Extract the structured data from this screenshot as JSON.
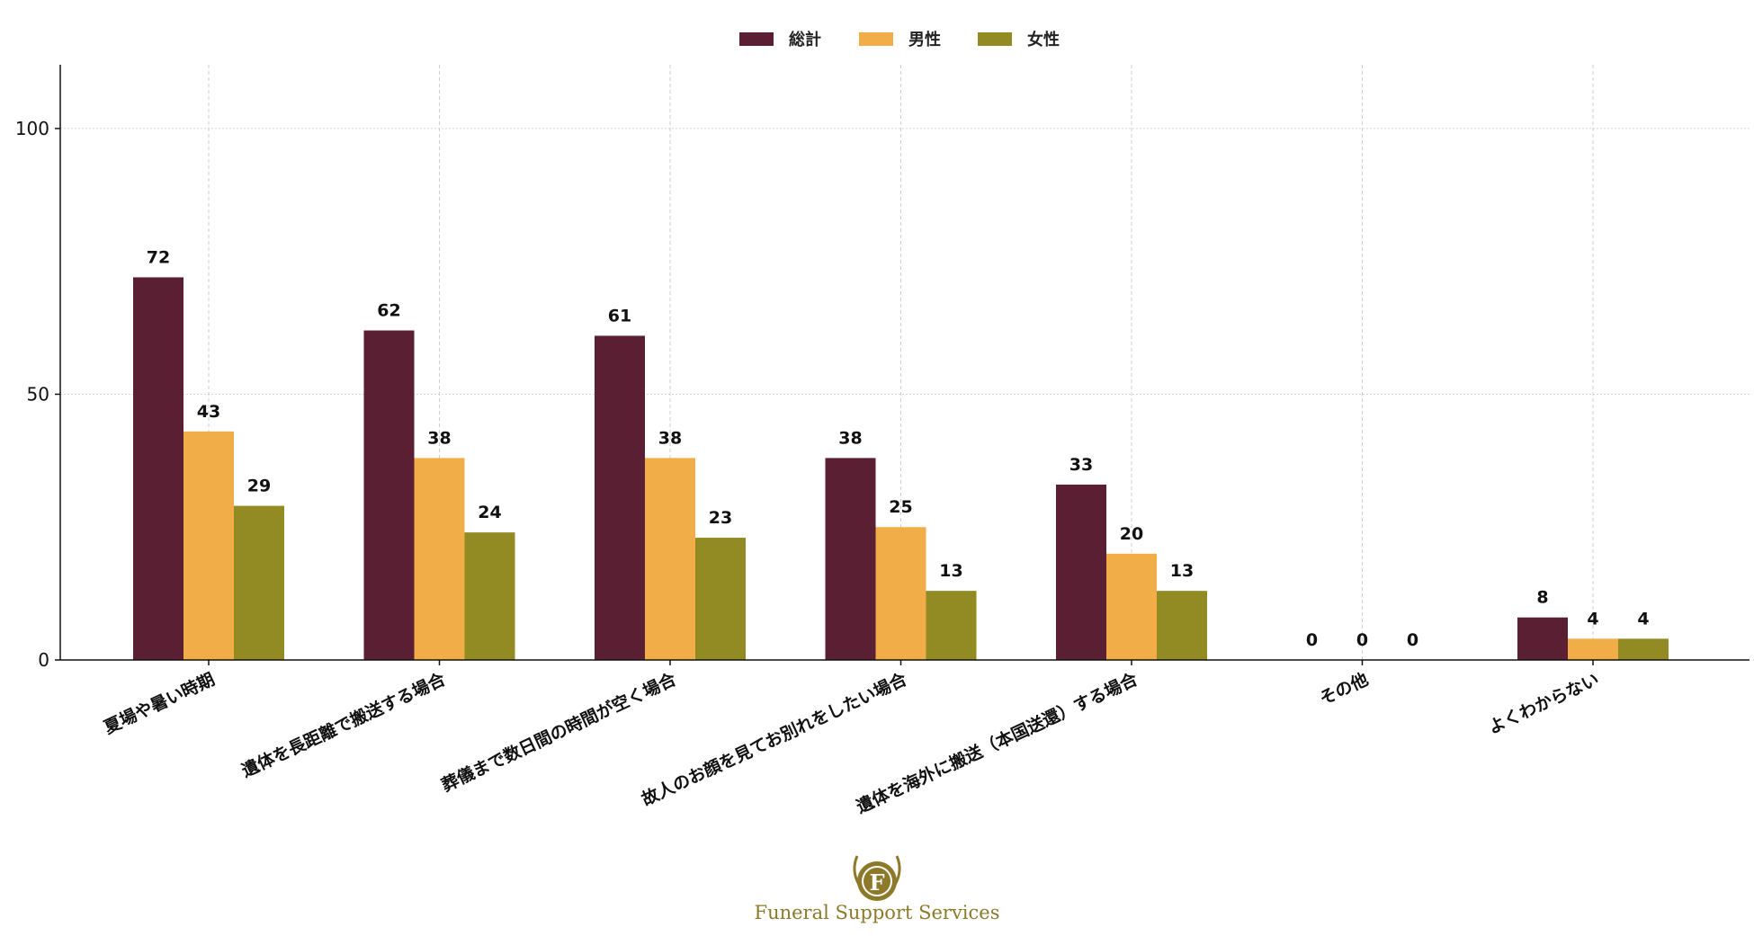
{
  "chart_data": {
    "type": "bar",
    "categories": [
      "夏場や暑い時期",
      "遺体を長距離で搬送する場合",
      "葬儀まで数日間の時間が空く場合",
      "故人のお顔を見てお別れをしたい場合",
      "遺体を海外に搬送（本国送還）する場合",
      "その他",
      "よくわからない"
    ],
    "series": [
      {
        "name": "総計",
        "color": "#5a1f33",
        "values": [
          72,
          62,
          61,
          38,
          33,
          0,
          8
        ]
      },
      {
        "name": "男性",
        "color": "#f0ad48",
        "values": [
          43,
          38,
          38,
          25,
          20,
          0,
          4
        ]
      },
      {
        "name": "女性",
        "color": "#928a22",
        "values": [
          29,
          24,
          23,
          13,
          13,
          0,
          4
        ]
      }
    ],
    "title": "",
    "xlabel": "",
    "ylabel": "",
    "ylim": [
      0,
      112
    ],
    "yticks": [
      0,
      50,
      100
    ],
    "grid": true,
    "legend": "top-center"
  },
  "brand": {
    "name": "Funeral Support Services",
    "logo_letter": "F"
  }
}
